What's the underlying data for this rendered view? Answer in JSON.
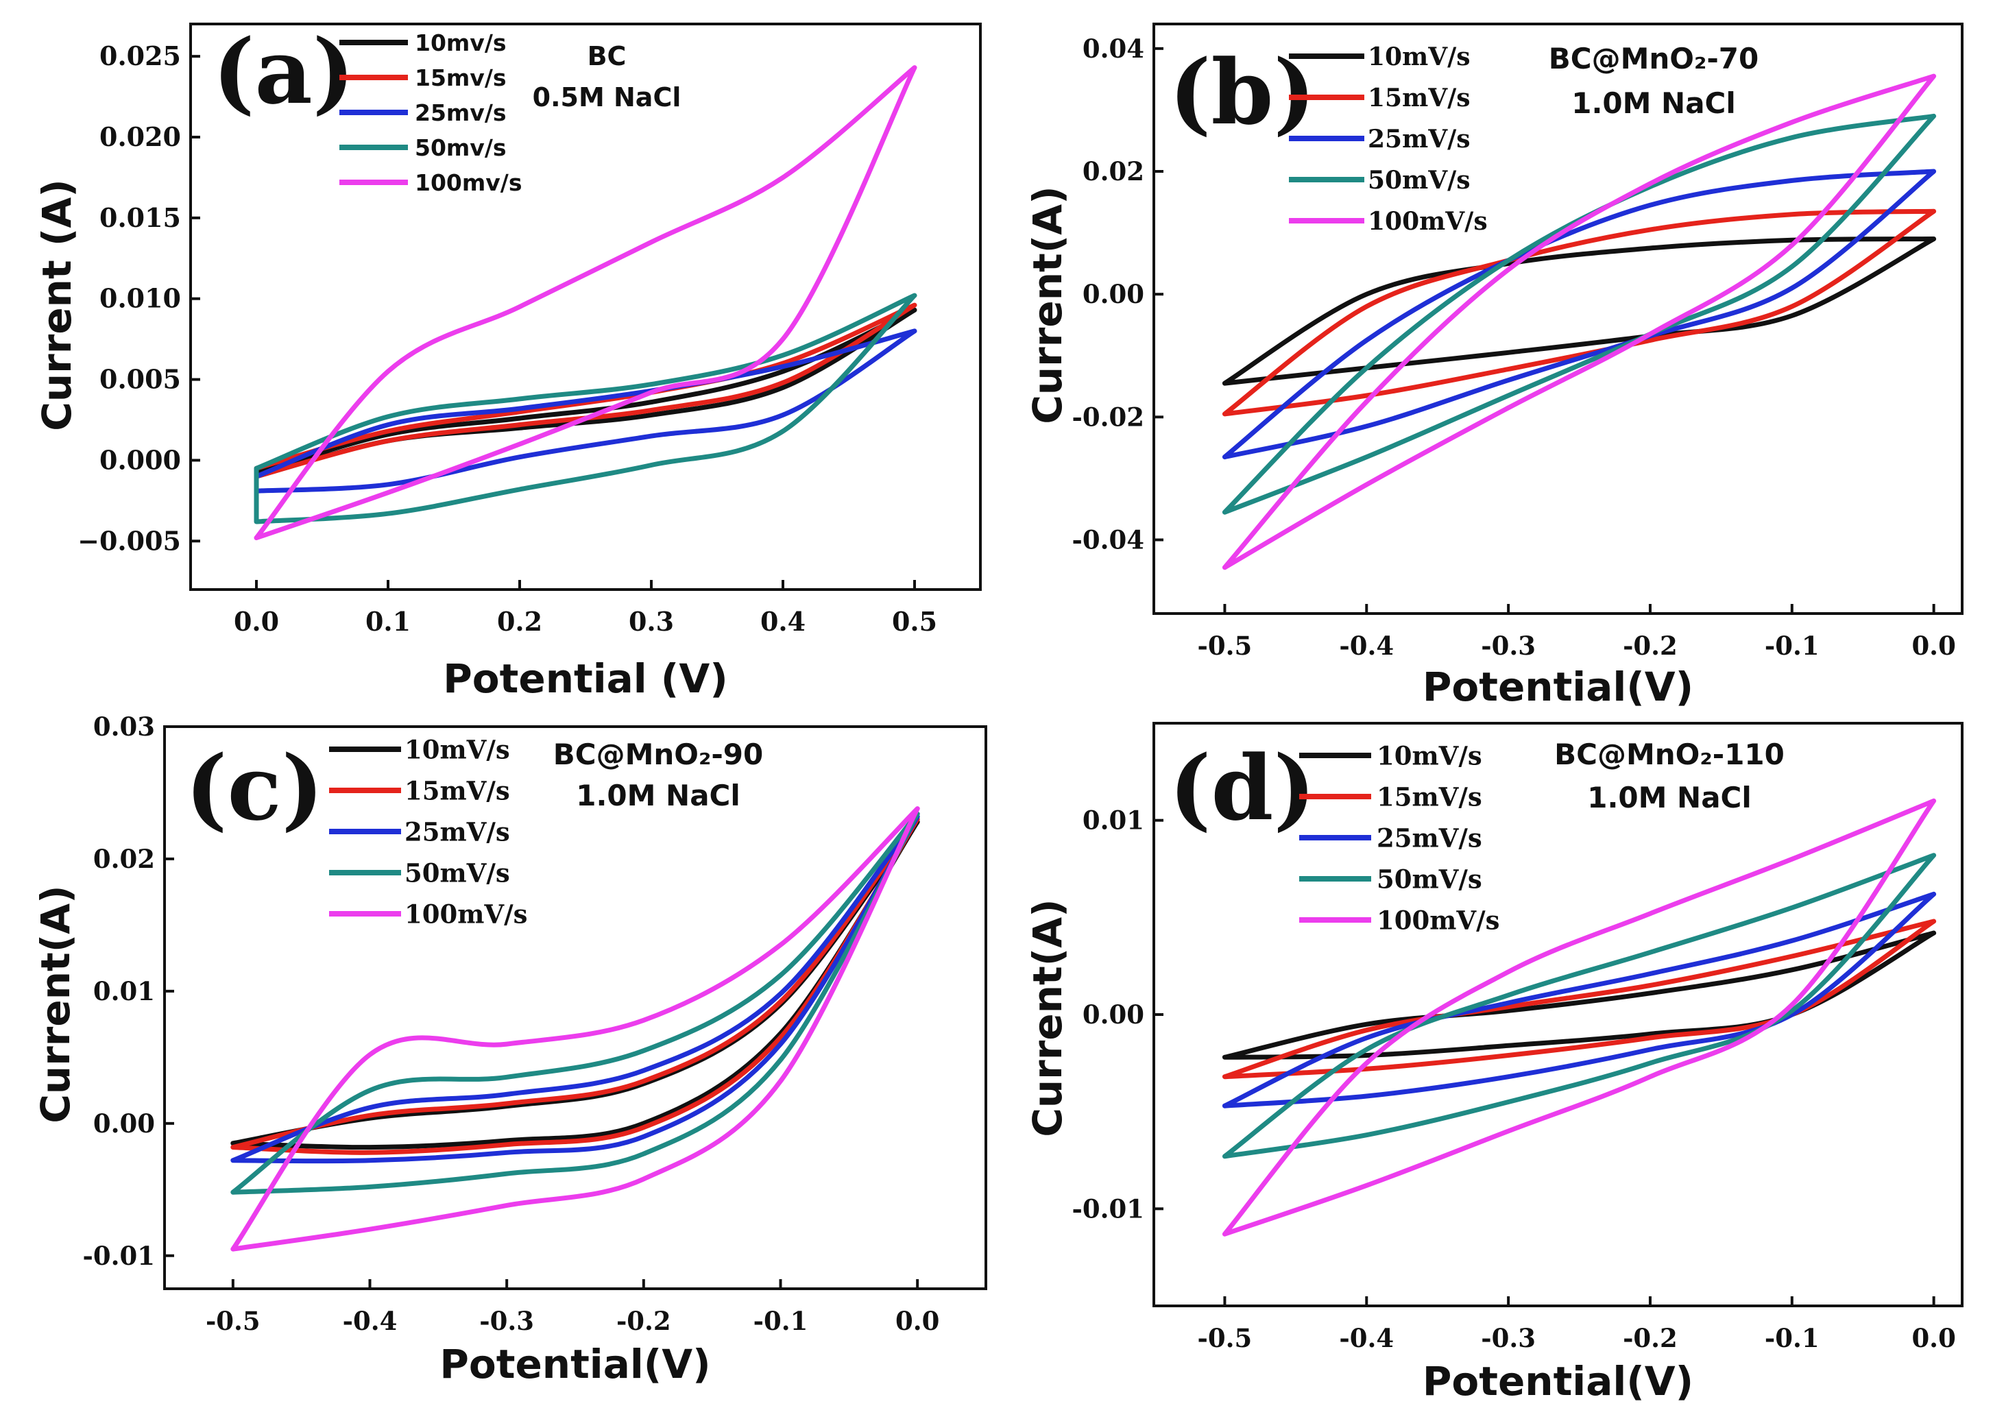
{
  "colors": {
    "10": "#111111",
    "15": "#e5231b",
    "25": "#1f2fd6",
    "50": "#1f8a84",
    "100": "#ec3ded"
  },
  "chart_data": [
    {
      "panel": "(a)",
      "type": "line",
      "title": "BC",
      "subtitle": "0.5M NaCl",
      "xlabel": "Potential (V)",
      "ylabel": "Current (A)",
      "xlim": [
        -0.05,
        0.55
      ],
      "ylim": [
        -0.008,
        0.027
      ],
      "xticks": [
        0.0,
        0.1,
        0.2,
        0.3,
        0.4,
        0.5
      ],
      "yticks": [
        -0.005,
        0.0,
        0.005,
        0.01,
        0.015,
        0.02,
        0.025
      ],
      "xtick_labels": [
        "0.0",
        "0.1",
        "0.2",
        "0.3",
        "0.4",
        "0.5"
      ],
      "ytick_labels": [
        "−0.005",
        "0.000",
        "0.005",
        "0.010",
        "0.015",
        "0.020",
        "0.025"
      ],
      "series": [
        {
          "name": "10mv/s",
          "key": "10",
          "x": [
            0.0,
            0.1,
            0.2,
            0.3,
            0.4,
            0.5
          ],
          "upper": [
            -0.0008,
            0.0016,
            0.0026,
            0.0036,
            0.0055,
            0.0093
          ],
          "lower": [
            -0.001,
            0.0012,
            0.002,
            0.0028,
            0.0045,
            0.0093
          ]
        },
        {
          "name": "15mv/s",
          "key": "15",
          "x": [
            0.0,
            0.1,
            0.2,
            0.3,
            0.4,
            0.5
          ],
          "upper": [
            -0.0005,
            0.0018,
            0.003,
            0.0042,
            0.006,
            0.0096
          ],
          "lower": [
            -0.001,
            0.0012,
            0.0022,
            0.0031,
            0.0048,
            0.0096
          ]
        },
        {
          "name": "25mv/s",
          "key": "25",
          "x": [
            0.0,
            0.1,
            0.2,
            0.3,
            0.4,
            0.5
          ],
          "upper": [
            -0.001,
            0.0022,
            0.0032,
            0.0043,
            0.0058,
            0.008
          ],
          "lower": [
            -0.0019,
            -0.0015,
            0.0002,
            0.0015,
            0.0028,
            0.008
          ]
        },
        {
          "name": "50mv/s",
          "key": "50",
          "x": [
            0.0,
            0.1,
            0.2,
            0.3,
            0.4,
            0.5
          ],
          "upper": [
            -0.0005,
            0.0027,
            0.0038,
            0.0047,
            0.0065,
            0.0102
          ],
          "lower": [
            -0.0038,
            -0.0033,
            -0.0018,
            -0.0003,
            0.0018,
            0.0102
          ]
        },
        {
          "name": "100mv/s",
          "key": "100",
          "x": [
            0.0,
            0.1,
            0.2,
            0.3,
            0.4,
            0.5
          ],
          "upper": [
            -0.0048,
            0.0055,
            0.0095,
            0.0135,
            0.0175,
            0.0243
          ],
          "lower": [
            -0.0048,
            -0.002,
            0.001,
            0.0042,
            0.0075,
            0.0243
          ]
        }
      ]
    },
    {
      "panel": "(b)",
      "type": "line",
      "title": "BC@MnO₂-70",
      "subtitle": "1.0M NaCl",
      "xlabel": "Potential(V)",
      "ylabel": "Current(A)",
      "xlim": [
        -0.55,
        0.02
      ],
      "ylim": [
        -0.052,
        0.044
      ],
      "xticks": [
        -0.5,
        -0.4,
        -0.3,
        -0.2,
        -0.1,
        0.0
      ],
      "yticks": [
        -0.04,
        -0.02,
        0.0,
        0.02,
        0.04
      ],
      "xtick_labels": [
        "-0.5",
        "-0.4",
        "-0.3",
        "-0.2",
        "-0.1",
        "0.0"
      ],
      "ytick_labels": [
        "-0.04",
        "-0.02",
        "0.00",
        "0.02",
        "0.04"
      ],
      "series": [
        {
          "name": "10mV/s",
          "key": "10",
          "x": [
            -0.5,
            -0.4,
            -0.3,
            -0.2,
            -0.1,
            0.0
          ],
          "upper": [
            -0.0145,
            0.0,
            0.005,
            0.0075,
            0.0088,
            0.009
          ],
          "lower": [
            -0.0145,
            -0.012,
            -0.0095,
            -0.0068,
            -0.0035,
            0.009
          ]
        },
        {
          "name": "15mV/s",
          "key": "15",
          "x": [
            -0.5,
            -0.4,
            -0.3,
            -0.2,
            -0.1,
            0.0
          ],
          "upper": [
            -0.0195,
            -0.002,
            0.0055,
            0.0105,
            0.013,
            0.0135
          ],
          "lower": [
            -0.0195,
            -0.0165,
            -0.0122,
            -0.0075,
            -0.002,
            0.0135
          ]
        },
        {
          "name": "25mV/s",
          "key": "25",
          "x": [
            -0.5,
            -0.4,
            -0.3,
            -0.2,
            -0.1,
            0.0
          ],
          "upper": [
            -0.0265,
            -0.0075,
            0.0055,
            0.0145,
            0.0185,
            0.02
          ],
          "lower": [
            -0.0265,
            -0.0215,
            -0.014,
            -0.0068,
            0.001,
            0.02
          ]
        },
        {
          "name": "50mV/s",
          "key": "50",
          "x": [
            -0.5,
            -0.4,
            -0.3,
            -0.2,
            -0.1,
            0.0
          ],
          "upper": [
            -0.0355,
            -0.012,
            0.0055,
            0.0175,
            0.0255,
            0.029
          ],
          "lower": [
            -0.0355,
            -0.0265,
            -0.0165,
            -0.0065,
            0.0045,
            0.029
          ]
        },
        {
          "name": "100mV/s",
          "key": "100",
          "x": [
            -0.5,
            -0.4,
            -0.3,
            -0.2,
            -0.1,
            0.0
          ],
          "upper": [
            -0.0445,
            -0.0175,
            0.004,
            0.018,
            0.028,
            0.0355
          ],
          "lower": [
            -0.0445,
            -0.031,
            -0.0185,
            -0.0065,
            0.008,
            0.0355
          ]
        }
      ]
    },
    {
      "panel": "(c)",
      "type": "line",
      "title": "BC@MnO₂-90",
      "subtitle": "1.0M NaCl",
      "xlabel": "Potential(V)",
      "ylabel": "Current(A)",
      "xlim": [
        -0.55,
        0.05
      ],
      "ylim": [
        -0.0125,
        0.03
      ],
      "xticks": [
        -0.5,
        -0.4,
        -0.3,
        -0.2,
        -0.1,
        0.0
      ],
      "yticks": [
        -0.01,
        0.0,
        0.01,
        0.02,
        0.03
      ],
      "xtick_labels": [
        "-0.5",
        "-0.4",
        "-0.3",
        "-0.2",
        "-0.1",
        "0.0"
      ],
      "ytick_labels": [
        "-0.01",
        "0.00",
        "0.01",
        "0.02",
        "0.03"
      ],
      "series": [
        {
          "name": "10mV/s",
          "key": "10",
          "x": [
            -0.5,
            -0.4,
            -0.3,
            -0.2,
            -0.1,
            0.0
          ],
          "upper": [
            -0.0015,
            0.0004,
            0.0013,
            0.003,
            0.009,
            0.0228
          ],
          "lower": [
            -0.0015,
            -0.0018,
            -0.0013,
            0.0,
            0.0068,
            0.0228
          ]
        },
        {
          "name": "15mV/s",
          "key": "15",
          "x": [
            -0.5,
            -0.4,
            -0.3,
            -0.2,
            -0.1,
            0.0
          ],
          "upper": [
            -0.0018,
            0.0006,
            0.0015,
            0.0032,
            0.0092,
            0.023
          ],
          "lower": [
            -0.0018,
            -0.0022,
            -0.0016,
            -0.0003,
            0.0065,
            0.023
          ]
        },
        {
          "name": "25mV/s",
          "key": "25",
          "x": [
            -0.5,
            -0.4,
            -0.3,
            -0.2,
            -0.1,
            0.0
          ],
          "upper": [
            -0.0028,
            0.0012,
            0.0022,
            0.004,
            0.0098,
            0.0232
          ],
          "lower": [
            -0.0028,
            -0.0028,
            -0.0022,
            -0.001,
            0.006,
            0.0232
          ]
        },
        {
          "name": "50mV/s",
          "key": "50",
          "x": [
            -0.5,
            -0.4,
            -0.3,
            -0.2,
            -0.1,
            0.0
          ],
          "upper": [
            -0.0052,
            0.0025,
            0.0035,
            0.0055,
            0.0112,
            0.0234
          ],
          "lower": [
            -0.0052,
            -0.0048,
            -0.0038,
            -0.0023,
            0.0048,
            0.0234
          ]
        },
        {
          "name": "100mV/s",
          "key": "100",
          "x": [
            -0.5,
            -0.4,
            -0.3,
            -0.2,
            -0.1,
            0.0
          ],
          "upper": [
            -0.0095,
            0.0052,
            0.006,
            0.0078,
            0.0135,
            0.0238
          ],
          "lower": [
            -0.0095,
            -0.008,
            -0.0062,
            -0.0042,
            0.0032,
            0.0238
          ]
        }
      ]
    },
    {
      "panel": "(d)",
      "type": "line",
      "title": "BC@MnO₂-110",
      "subtitle": "1.0M NaCl",
      "xlabel": "Potential(V)",
      "ylabel": "Current(A)",
      "xlim": [
        -0.55,
        0.02
      ],
      "ylim": [
        -0.015,
        0.015
      ],
      "xticks": [
        -0.5,
        -0.4,
        -0.3,
        -0.2,
        -0.1,
        0.0
      ],
      "yticks": [
        -0.01,
        0.0,
        0.01
      ],
      "xtick_labels": [
        "-0.5",
        "-0.4",
        "-0.3",
        "-0.2",
        "-0.1",
        "0.0"
      ],
      "ytick_labels": [
        "-0.01",
        "0.00",
        "0.01"
      ],
      "series": [
        {
          "name": "10mV/s",
          "key": "10",
          "x": [
            -0.5,
            -0.4,
            -0.3,
            -0.2,
            -0.1,
            0.0
          ],
          "upper": [
            -0.0022,
            -0.0005,
            0.0002,
            0.0011,
            0.0023,
            0.0042
          ],
          "lower": [
            -0.0022,
            -0.0021,
            -0.0016,
            -0.001,
            0.0,
            0.0042
          ]
        },
        {
          "name": "15mV/s",
          "key": "15",
          "x": [
            -0.5,
            -0.4,
            -0.3,
            -0.2,
            -0.1,
            0.0
          ],
          "upper": [
            -0.0032,
            -0.0008,
            0.0004,
            0.0015,
            0.003,
            0.0048
          ],
          "lower": [
            -0.0032,
            -0.0028,
            -0.0021,
            -0.0012,
            0.0,
            0.0048
          ]
        },
        {
          "name": "25mV/s",
          "key": "25",
          "x": [
            -0.5,
            -0.4,
            -0.3,
            -0.2,
            -0.1,
            0.0
          ],
          "upper": [
            -0.0047,
            -0.0012,
            0.0006,
            0.0021,
            0.0038,
            0.0062
          ],
          "lower": [
            -0.0047,
            -0.0042,
            -0.0032,
            -0.0018,
            0.0,
            0.0062
          ]
        },
        {
          "name": "50mV/s",
          "key": "50",
          "x": [
            -0.5,
            -0.4,
            -0.3,
            -0.2,
            -0.1,
            0.0
          ],
          "upper": [
            -0.0073,
            -0.0018,
            0.001,
            0.0032,
            0.0055,
            0.0082
          ],
          "lower": [
            -0.0073,
            -0.0062,
            -0.0045,
            -0.0025,
            0.0002,
            0.0082
          ]
        },
        {
          "name": "100mV/s",
          "key": "100",
          "x": [
            -0.5,
            -0.4,
            -0.3,
            -0.2,
            -0.1,
            0.0
          ],
          "upper": [
            -0.0113,
            -0.0025,
            0.0022,
            0.0052,
            0.008,
            0.011
          ],
          "lower": [
            -0.0113,
            -0.0088,
            -0.006,
            -0.0032,
            0.0005,
            0.011
          ]
        }
      ]
    }
  ]
}
